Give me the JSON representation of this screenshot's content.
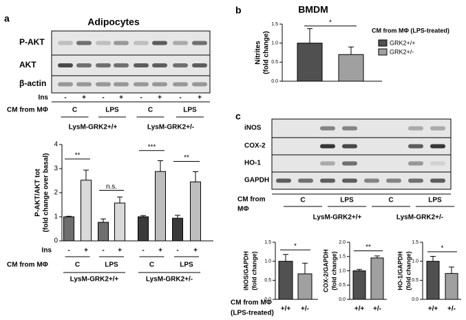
{
  "panel_labels": [
    "a",
    "b",
    "c"
  ],
  "panel_a": {
    "title": "Adipocytes",
    "blot_rows": [
      "P-AKT",
      "AKT",
      "β-actin"
    ],
    "ins_label": "Ins",
    "ins": [
      "-",
      "+",
      "-",
      "+",
      "-",
      "+",
      "-",
      "+"
    ],
    "cm_label": "CM from MΦ",
    "cm": [
      "C",
      "LPS",
      "C",
      "LPS"
    ],
    "genotypes": [
      "LysM-GRK2+/+",
      "LysM-GRK2+/-"
    ]
  },
  "panel_c": {
    "blot_rows": [
      "iNOS",
      "COX-2",
      "HO-1",
      "GAPDH"
    ],
    "cm_label": [
      "CM from",
      "MΦ"
    ],
    "cm": [
      "C",
      "LPS",
      "C",
      "LPS"
    ],
    "genotypes": [
      "LysM-GRK2+/+",
      "LysM-GRK2+/-"
    ]
  },
  "bottom_label": [
    "CM from MΦ",
    "(LPS-treated)"
  ],
  "chart_data": [
    {
      "type": "bar",
      "ylabel": [
        "P-AKT/AKT tot",
        "(fold change over basal)"
      ],
      "categories": [
        "-",
        "+",
        "-",
        "+",
        "-",
        "+",
        "-",
        "+"
      ],
      "values": [
        1.0,
        2.52,
        0.77,
        1.57,
        1.0,
        2.88,
        0.94,
        2.45
      ],
      "errors": [
        0.02,
        0.42,
        0.14,
        0.25,
        0.05,
        0.45,
        0.12,
        0.42
      ],
      "colors": [
        "#6e6e6e",
        "#d9d9d9",
        "#6e6e6e",
        "#d9d9d9",
        "#3a3a3a",
        "#bdbdbd",
        "#3a3a3a",
        "#bdbdbd"
      ],
      "ylim": [
        0,
        4
      ],
      "yticks": [
        0,
        1,
        2,
        3,
        4
      ],
      "x_label": "Ins",
      "cm_label": "CM from MΦ",
      "cm": [
        "C",
        "LPS",
        "C",
        "LPS"
      ],
      "genotypes": [
        "LysM-GRK2+/+",
        "LysM-GRK2+/-"
      ],
      "annotations": [
        {
          "text": "**",
          "y": 3.4
        },
        {
          "text": "n.s.",
          "y": 2.1
        },
        {
          "text": "***",
          "y": 3.75
        },
        {
          "text": "**",
          "y": 3.3
        }
      ]
    },
    {
      "type": "bar",
      "title": "BMDM",
      "ylabel": [
        "Nitrites",
        "(fold change)"
      ],
      "categories": [
        null,
        null
      ],
      "values": [
        1.0,
        0.7
      ],
      "errors": [
        0.38,
        0.2
      ],
      "colors": [
        "#505050",
        "#a0a0a0"
      ],
      "ylim": [
        0,
        1.5
      ],
      "yticks": [
        {
          "value": 0,
          "label": "0.0"
        },
        {
          "value": 0.5,
          "label": "0.5"
        },
        {
          "value": 1,
          "label": "1.0"
        },
        {
          "value": 1.5,
          "label": "1.5"
        }
      ],
      "annotations": [
        {
          "text": "*",
          "y": 1.45
        }
      ],
      "legend": {
        "title": "CM from MΦ (LPS-treated)",
        "entries": [
          "GRK2+/+",
          "GRK2+/-"
        ]
      }
    },
    {
      "type": "bar",
      "ylabel": [
        "iNOS/GAPDH",
        "(fold change)"
      ],
      "categories": [
        "+/+",
        "+/-"
      ],
      "values": [
        1.0,
        0.67
      ],
      "errors": [
        0.18,
        0.28
      ],
      "colors": [
        "#505050",
        "#a0a0a0"
      ],
      "ylim": [
        0,
        1.5
      ],
      "yticks": [
        {
          "value": 0,
          "label": "0.0"
        },
        {
          "value": 0.5,
          "label": "0.5"
        },
        {
          "value": 1,
          "label": "1.0"
        },
        {
          "value": 1.5,
          "label": "1.5"
        }
      ],
      "annotations": [
        {
          "text": "*",
          "y": 1.3
        }
      ]
    },
    {
      "type": "bar",
      "ylabel": [
        "COX-2/GAPDH",
        "(fold change)"
      ],
      "categories": [
        "+/+",
        "+/-"
      ],
      "values": [
        1.0,
        1.45
      ],
      "errors": [
        0.05,
        0.07
      ],
      "colors": [
        "#505050",
        "#a0a0a0"
      ],
      "ylim": [
        0,
        2
      ],
      "yticks": [
        {
          "value": 0,
          "label": "0.0"
        },
        {
          "value": 0.5,
          "label": "0.5"
        },
        {
          "value": 1,
          "label": "1.0"
        },
        {
          "value": 1.5,
          "label": "1.5"
        },
        {
          "value": 2,
          "label": "2.0"
        }
      ],
      "annotations": [
        {
          "text": "**",
          "y": 1.7
        }
      ]
    },
    {
      "type": "bar",
      "ylabel": [
        "HO-1/GAPDH",
        "(fold change)"
      ],
      "categories": [
        "+/+",
        "+/-"
      ],
      "values": [
        1.0,
        0.68
      ],
      "errors": [
        0.13,
        0.17
      ],
      "colors": [
        "#505050",
        "#a0a0a0"
      ],
      "ylim": [
        0,
        1.5
      ],
      "yticks": [
        {
          "value": 0,
          "label": "0.0"
        },
        {
          "value": 0.5,
          "label": "0.5"
        },
        {
          "value": 1,
          "label": "1.0"
        },
        {
          "value": 1.5,
          "label": "1.5"
        }
      ],
      "annotations": [
        {
          "text": "*",
          "y": 1.25
        }
      ]
    }
  ]
}
